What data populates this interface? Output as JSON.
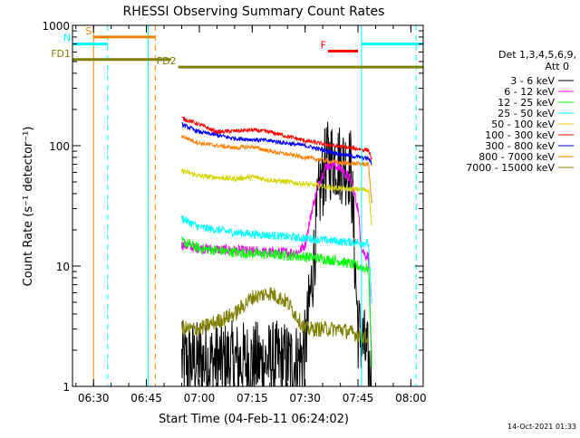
{
  "chart_data": {
    "type": "line",
    "title": "RHESSI Observing Summary Count Rates",
    "xlabel": "Start Time (04-Feb-11 06:24:02)",
    "ylabel": "Count Rate (s⁻¹ detector⁻¹)",
    "y_scale": "log",
    "ylim": [
      1,
      1000
    ],
    "xlim": [
      "06:24:02",
      "08:03:30"
    ],
    "x_ticks": [
      "06:30",
      "06:45",
      "07:00",
      "07:15",
      "07:30",
      "07:45",
      "08:00"
    ],
    "y_ticks": [
      "1",
      "10",
      "100",
      "1000"
    ],
    "legend": {
      "placement": "right",
      "header": [
        "Det 1,3,4,5,6,9,",
        "Att 0"
      ],
      "entries": [
        {
          "label": "3 - 6 keV",
          "color": "#000000"
        },
        {
          "label": "6 - 12 keV",
          "color": "#ff00ff"
        },
        {
          "label": "12 - 25 keV",
          "color": "#00ff00"
        },
        {
          "label": "25 - 50 keV",
          "color": "#00ffff"
        },
        {
          "label": "50 - 100 keV",
          "color": "#d4d400"
        },
        {
          "label": "100 - 300 keV",
          "color": "#ff0000"
        },
        {
          "label": "300 - 800 keV",
          "color": "#0000ff"
        },
        {
          "label": "800 - 7000 keV",
          "color": "#ff8000"
        },
        {
          "label": "7000 - 15000 keV",
          "color": "#808000"
        }
      ]
    },
    "flags": [
      {
        "label": "S",
        "color": "#ff8000",
        "start": "06:30:00",
        "end": "06:47:30",
        "y": 800
      },
      {
        "label": "N",
        "color": "#00ffff",
        "start": "06:24:02",
        "end": "06:34:00",
        "y": 700
      },
      {
        "label": "FD1",
        "color": "#808000",
        "start": "06:24:02",
        "end": "06:52:00",
        "y": 520
      },
      {
        "label": "FD2",
        "color": "#808000",
        "start": "06:54:00",
        "end": "08:03:30",
        "y": 450
      },
      {
        "label": "F",
        "color": "#ff0000",
        "start": "07:36:30",
        "end": "07:45:00",
        "y": 610
      }
    ],
    "night_line": {
      "color": "#00ffff",
      "start": "07:46:00",
      "end": "08:03:30",
      "y": 700
    },
    "vertical_markers": [
      {
        "time": "06:24:02",
        "color": "#00ffff",
        "style": "solid"
      },
      {
        "time": "06:34:00",
        "color": "#00ffff",
        "style": "dashed"
      },
      {
        "time": "06:45:30",
        "color": "#00ffff",
        "style": "solid"
      },
      {
        "time": "07:46:00",
        "color": "#00ffff",
        "style": "solid"
      },
      {
        "time": "08:01:30",
        "color": "#00ffff",
        "style": "dashed"
      },
      {
        "time": "06:30:00",
        "color": "#ff8000",
        "style": "solid"
      },
      {
        "time": "06:47:30",
        "color": "#ff8000",
        "style": "dashed"
      }
    ],
    "series": [
      {
        "name": "3 - 6 keV",
        "color": "#000000",
        "noise": 0.8,
        "x": [
          "06:55",
          "07:00",
          "07:10",
          "07:20",
          "07:28",
          "07:30",
          "07:32",
          "07:34",
          "07:36",
          "07:38",
          "07:40",
          "07:43",
          "07:45",
          "07:47",
          "07:48",
          "07:49"
        ],
        "values": [
          1.6,
          1.6,
          1.6,
          1.6,
          1.6,
          2.0,
          8.0,
          40,
          72,
          78,
          72,
          66,
          3,
          2,
          1.5,
          1
        ]
      },
      {
        "name": "6 - 12 keV",
        "color": "#ff00ff",
        "noise": 0.1,
        "x": [
          "06:55",
          "07:00",
          "07:10",
          "07:20",
          "07:28",
          "07:30",
          "07:32",
          "07:34",
          "07:36",
          "07:38",
          "07:40",
          "07:43",
          "07:45",
          "07:46",
          "07:47",
          "07:48",
          "07:49"
        ],
        "values": [
          15,
          14,
          13.5,
          13,
          13,
          15,
          30,
          50,
          68,
          70,
          65,
          52,
          30,
          14,
          12.5,
          12,
          1.2
        ]
      },
      {
        "name": "12 - 25 keV",
        "color": "#00ff00",
        "noise": 0.1,
        "x": [
          "06:55",
          "07:00",
          "07:10",
          "07:20",
          "07:30",
          "07:40",
          "07:45",
          "07:48",
          "07:49"
        ],
        "values": [
          16,
          14,
          13,
          12.5,
          12,
          11,
          10,
          9.5,
          1.2
        ]
      },
      {
        "name": "25 - 50 keV",
        "color": "#00ffff",
        "noise": 0.08,
        "x": [
          "06:55",
          "07:00",
          "07:10",
          "07:20",
          "07:30",
          "07:40",
          "07:48",
          "07:49"
        ],
        "values": [
          25,
          21,
          19,
          18,
          17,
          16,
          15.5,
          4
        ]
      },
      {
        "name": "50 - 100 keV",
        "color": "#d4d400",
        "noise": 0.05,
        "x": [
          "06:55",
          "07:00",
          "07:10",
          "07:15",
          "07:20",
          "07:30",
          "07:40",
          "07:48",
          "07:49"
        ],
        "values": [
          62,
          56,
          53,
          55,
          52,
          48,
          44,
          43,
          20
        ]
      },
      {
        "name": "100 - 300 keV",
        "color": "#ff0000",
        "noise": 0.04,
        "x": [
          "06:55",
          "07:00",
          "07:05",
          "07:15",
          "07:20",
          "07:30",
          "07:38",
          "07:44",
          "07:48",
          "07:49"
        ],
        "values": [
          170,
          150,
          130,
          135,
          130,
          110,
          100,
          95,
          92,
          75
        ]
      },
      {
        "name": "300 - 800 keV",
        "color": "#0000ff",
        "noise": 0.04,
        "x": [
          "06:55",
          "07:00",
          "07:10",
          "07:20",
          "07:30",
          "07:40",
          "07:48",
          "07:49"
        ],
        "values": [
          150,
          130,
          115,
          110,
          100,
          85,
          78,
          70
        ]
      },
      {
        "name": "800 - 7000 keV",
        "color": "#ff8000",
        "noise": 0.04,
        "x": [
          "06:55",
          "07:00",
          "07:10",
          "07:15",
          "07:20",
          "07:30",
          "07:40",
          "07:48",
          "07:49"
        ],
        "values": [
          120,
          105,
          96,
          98,
          90,
          80,
          72,
          70,
          30
        ]
      },
      {
        "name": "7000 - 15000 keV",
        "color": "#808000",
        "noise": 0.15,
        "x": [
          "06:55",
          "07:00",
          "07:10",
          "07:15",
          "07:20",
          "07:25",
          "07:30",
          "07:40",
          "07:48"
        ],
        "values": [
          3,
          3,
          4,
          5.5,
          6,
          5,
          3,
          3,
          2.5
        ]
      }
    ]
  },
  "footer": {
    "timestamp": "14-Oct-2021 01:33"
  }
}
